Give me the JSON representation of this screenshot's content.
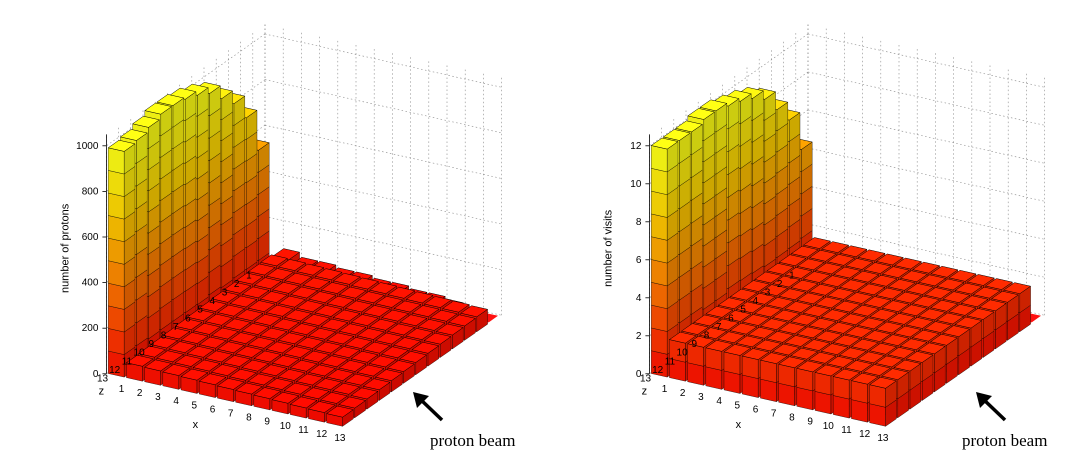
{
  "chart_data": [
    {
      "type": "bar3d",
      "ylabel": "number of protons",
      "xlabel": "x",
      "zlabel": "z",
      "ylim": [
        0,
        1000
      ],
      "yticks": [
        0,
        200,
        400,
        600,
        800,
        1000
      ],
      "x_categories": [
        1,
        2,
        3,
        4,
        5,
        6,
        7,
        8,
        9,
        10,
        11,
        12,
        13
      ],
      "z_categories": [
        1,
        2,
        3,
        4,
        5,
        6,
        7,
        8,
        9,
        10,
        11,
        12,
        13
      ],
      "edge_z": [
        null,
        580,
        760,
        860,
        920,
        980,
        1010,
        1030,
        1040,
        1040,
        1020,
        1000,
        990
      ],
      "edge_x": [
        null,
        80,
        60,
        60,
        50,
        50,
        40,
        40,
        30,
        30,
        20,
        0,
        0
      ],
      "interior_max": 100,
      "interior_min": 40,
      "grid": true,
      "annotation": "proton beam"
    },
    {
      "type": "bar3d",
      "ylabel": "number of visits",
      "xlabel": "x",
      "zlabel": "z",
      "ylim": [
        0,
        12
      ],
      "yticks": [
        0,
        2,
        4,
        6,
        8,
        10,
        12
      ],
      "x_categories": [
        1,
        2,
        3,
        4,
        5,
        6,
        7,
        8,
        9,
        10,
        11,
        12,
        13
      ],
      "z_categories": [
        1,
        2,
        3,
        4,
        5,
        6,
        7,
        8,
        9,
        10,
        11,
        12,
        13
      ],
      "edge_z": [
        null,
        7,
        9,
        10,
        11,
        11.5,
        11.8,
        12,
        12.2,
        12.2,
        12,
        12,
        12
      ],
      "edge_x": [
        null,
        1.2,
        1,
        1,
        1,
        1,
        1,
        1,
        1,
        1,
        1,
        0.5,
        0
      ],
      "interior_max": 2,
      "interior_min": 2,
      "grid": true,
      "annotation": "proton beam"
    }
  ]
}
